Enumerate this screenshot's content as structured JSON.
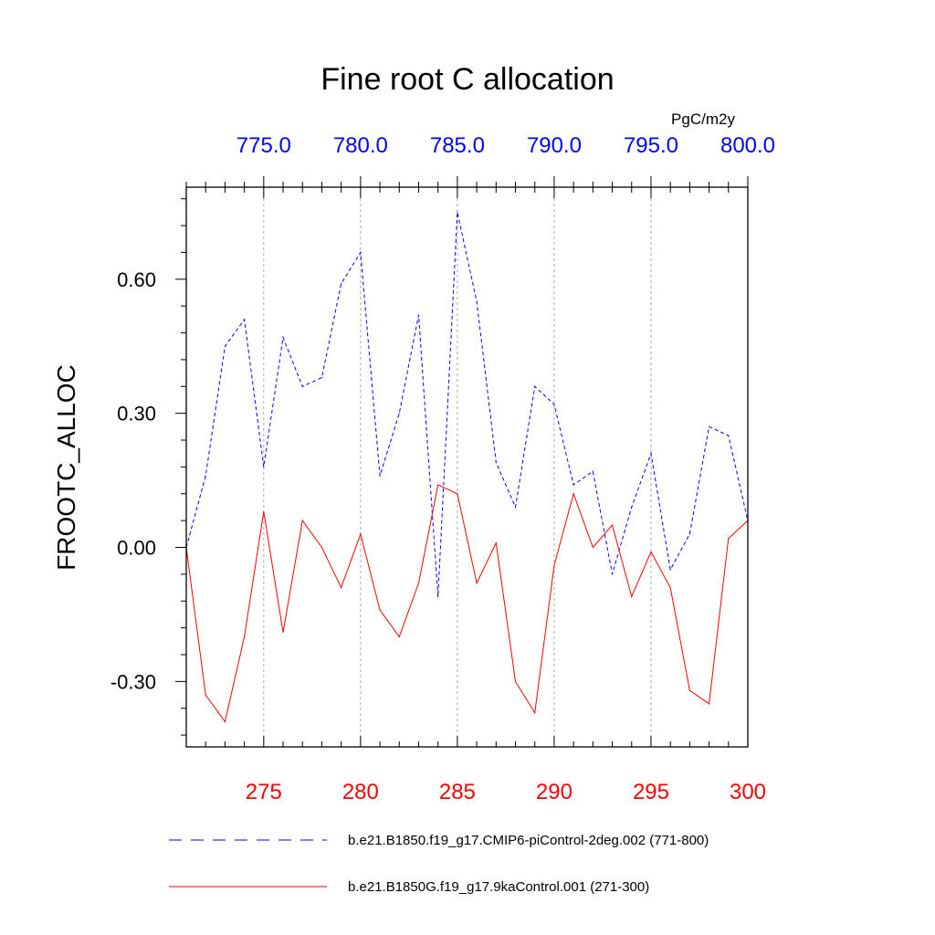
{
  "chart_data": {
    "type": "line",
    "title": "Fine root C allocation",
    "units": "PgC/m2y",
    "ylabel": "FROOTC_ALLOC",
    "ylim": [
      -0.45,
      0.8
    ],
    "yticks": [
      -0.3,
      0.0,
      0.3,
      0.6
    ],
    "ytick_labels": [
      "-0.30",
      "0.00",
      "0.30",
      "0.60"
    ],
    "grid": "vertical dashed at major x ticks",
    "x_bottom": {
      "range": [
        271,
        300
      ],
      "ticks": [
        275,
        280,
        285,
        290,
        295,
        300
      ],
      "tick_labels": [
        "275",
        "280",
        "285",
        "290",
        "295",
        "300"
      ],
      "color": "#ff0000"
    },
    "x_top": {
      "range": [
        771,
        800
      ],
      "ticks": [
        775,
        780,
        785,
        790,
        795,
        800
      ],
      "tick_labels": [
        "775.0",
        "780.0",
        "785.0",
        "790.0",
        "795.0",
        "800.0"
      ],
      "color": "#0000ff"
    },
    "legend_position": "bottom",
    "series": [
      {
        "name": "b.e21.B1850.f19_g17.CMIP6-piControl-2deg.002 (771-800)",
        "color": "#0000ff",
        "style": "dashed",
        "axis": "top",
        "x": [
          771,
          772,
          773,
          774,
          775,
          776,
          777,
          778,
          779,
          780,
          781,
          782,
          783,
          784,
          785,
          786,
          787,
          788,
          789,
          790,
          791,
          792,
          793,
          794,
          795,
          796,
          797,
          798,
          799,
          800
        ],
        "values": [
          0.0,
          0.16,
          0.45,
          0.51,
          0.18,
          0.47,
          0.36,
          0.38,
          0.59,
          0.66,
          0.16,
          0.3,
          0.52,
          -0.11,
          0.75,
          0.55,
          0.19,
          0.09,
          0.36,
          0.32,
          0.14,
          0.17,
          -0.06,
          0.09,
          0.21,
          -0.05,
          0.03,
          0.27,
          0.25,
          0.06
        ]
      },
      {
        "name": "b.e21.B1850G.f19_g17.9kaControl.001 (271-300)",
        "color": "#ff0000",
        "style": "solid",
        "axis": "bottom",
        "x": [
          271,
          272,
          273,
          274,
          275,
          276,
          277,
          278,
          279,
          280,
          281,
          282,
          283,
          284,
          285,
          286,
          287,
          288,
          289,
          290,
          291,
          292,
          293,
          294,
          295,
          296,
          297,
          298,
          299,
          300
        ],
        "values": [
          0.0,
          -0.33,
          -0.39,
          -0.2,
          0.08,
          -0.19,
          0.06,
          0.0,
          -0.09,
          0.03,
          -0.14,
          -0.2,
          -0.08,
          0.14,
          0.12,
          -0.08,
          0.01,
          -0.3,
          -0.37,
          -0.04,
          0.12,
          0.0,
          0.05,
          -0.11,
          -0.01,
          -0.09,
          -0.32,
          -0.35,
          0.02,
          0.06
        ]
      }
    ]
  }
}
